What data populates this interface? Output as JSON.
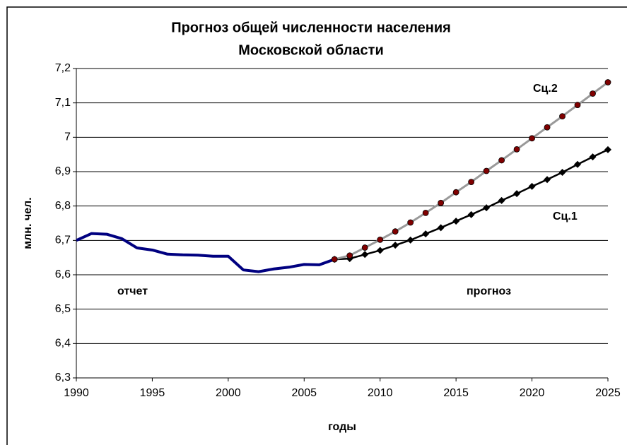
{
  "chart_data": {
    "type": "line",
    "title": [
      "Прогноз общей численности населения",
      "Московской области"
    ],
    "xlabel": "годы",
    "ylabel": "млн. чел.",
    "annotations": [
      "Сц.2",
      "Сц.1",
      "отчет",
      "прогноз"
    ],
    "x": [
      1990,
      1991,
      1992,
      1993,
      1994,
      1995,
      1996,
      1997,
      1998,
      1999,
      2000,
      2001,
      2002,
      2003,
      2004,
      2005,
      2006,
      2007,
      2008,
      2009,
      2010,
      2011,
      2012,
      2013,
      2014,
      2015,
      2016,
      2017,
      2018,
      2019,
      2020,
      2021,
      2022,
      2023,
      2024,
      2025
    ],
    "series": [
      {
        "color": "#000080",
        "width": 4,
        "marker": null,
        "values": [
          6.7,
          6.72,
          6.718,
          6.705,
          6.678,
          6.672,
          6.66,
          6.658,
          6.657,
          6.654,
          6.654,
          6.614,
          6.609,
          6.617,
          6.622,
          6.63,
          6.629,
          6.645,
          null,
          null,
          null,
          null,
          null,
          null,
          null,
          null,
          null,
          null,
          null,
          null,
          null,
          null,
          null,
          null,
          null,
          null
        ]
      },
      {
        "color": "#000000",
        "width": 2.5,
        "marker": "diamond",
        "marker_color": "#000000",
        "values": [
          null,
          null,
          null,
          null,
          null,
          null,
          null,
          null,
          null,
          null,
          null,
          null,
          null,
          null,
          null,
          null,
          null,
          6.645,
          6.647,
          6.659,
          6.671,
          6.686,
          6.701,
          6.719,
          6.737,
          6.756,
          6.775,
          6.795,
          6.816,
          6.836,
          6.857,
          6.877,
          6.898,
          6.921,
          6.943,
          6.964
        ]
      },
      {
        "color": "#999999",
        "width": 3,
        "marker": "circle",
        "marker_color": "#800000",
        "values": [
          null,
          null,
          null,
          null,
          null,
          null,
          null,
          null,
          null,
          null,
          null,
          null,
          null,
          null,
          null,
          null,
          null,
          6.645,
          6.656,
          6.679,
          6.702,
          6.726,
          6.752,
          6.78,
          6.809,
          6.84,
          6.87,
          6.902,
          6.933,
          6.965,
          6.997,
          7.029,
          7.061,
          7.094,
          7.127,
          7.16
        ]
      }
    ],
    "xlim": [
      1990,
      2025
    ],
    "xticks": [
      1990,
      1995,
      2000,
      2005,
      2010,
      2015,
      2020,
      2025
    ],
    "ylim": [
      6.3,
      7.2
    ],
    "yticks": [
      {
        "value": 6.3,
        "label": "6,3"
      },
      {
        "value": 6.4,
        "label": "6,4"
      },
      {
        "value": 6.5,
        "label": "6,5"
      },
      {
        "value": 6.6,
        "label": "6,6"
      },
      {
        "value": 6.7,
        "label": "6,7"
      },
      {
        "value": 6.8,
        "label": "6,8"
      },
      {
        "value": 6.9,
        "label": "6,9"
      },
      7,
      {
        "value": 7.1,
        "label": "7,1"
      },
      {
        "value": 7.2,
        "label": "7,2"
      }
    ],
    "grid": true
  }
}
